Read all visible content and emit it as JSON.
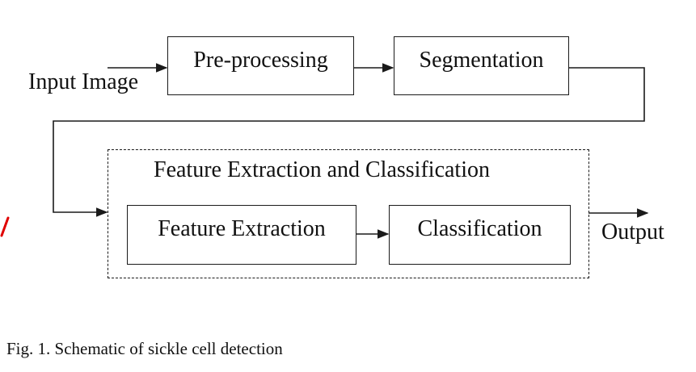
{
  "diagram": {
    "input_label": "Input Image",
    "output_label": "Output",
    "nodes": {
      "preprocessing": "Pre-processing",
      "segmentation": "Segmentation",
      "group_title": "Feature Extraction and Classification",
      "feature_extraction": "Feature Extraction",
      "classification": "Classification"
    },
    "edges": [
      {
        "from": "input_label",
        "to": "preprocessing"
      },
      {
        "from": "preprocessing",
        "to": "segmentation"
      },
      {
        "from": "segmentation",
        "to": "feature_extraction"
      },
      {
        "from": "feature_extraction",
        "to": "classification"
      },
      {
        "from": "classification",
        "to": "output_label"
      }
    ],
    "line_color": "#1a1a1a",
    "stray_mark_color": "#e00000"
  },
  "caption": "Fig. 1.  Schematic of sickle cell detection"
}
